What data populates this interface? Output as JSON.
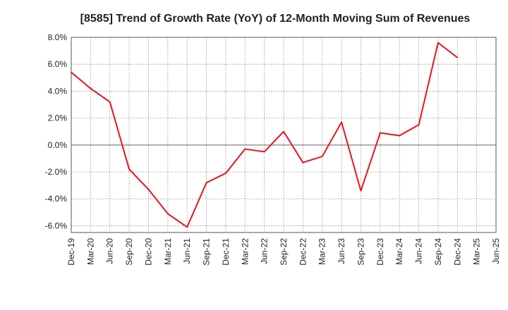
{
  "chart_data": {
    "type": "line",
    "title": "[8585]  Trend of Growth Rate (YoY) of 12-Month Moving Sum of Revenues",
    "xlabel": "",
    "ylabel": "",
    "x_ticks": [
      "Dec-19",
      "Mar-20",
      "Jun-20",
      "Sep-20",
      "Dec-20",
      "Mar-21",
      "Jun-21",
      "Sep-21",
      "Dec-21",
      "Mar-22",
      "Jun-22",
      "Sep-22",
      "Dec-22",
      "Mar-23",
      "Jun-23",
      "Sep-23",
      "Dec-23",
      "Mar-24",
      "Jun-24",
      "Sep-24",
      "Dec-24",
      "Mar-25",
      "Jun-25"
    ],
    "y_ticks": [
      8.0,
      6.0,
      4.0,
      2.0,
      0.0,
      -2.0,
      -4.0,
      -6.0
    ],
    "y_tick_labels": [
      "8.0%",
      "6.0%",
      "4.0%",
      "2.0%",
      "0.0%",
      "-2.0%",
      "-4.0%",
      "-6.0%"
    ],
    "ylim": [
      -6.5,
      8.0
    ],
    "grid": true,
    "series": [
      {
        "color": "#e8141c",
        "x": [
          "Dec-19",
          "Mar-20",
          "Jun-20",
          "Sep-20",
          "Dec-20",
          "Mar-21",
          "Jun-21",
          "Sep-21",
          "Dec-21",
          "Mar-22",
          "Jun-22",
          "Sep-22",
          "Dec-22",
          "Mar-23",
          "Jun-23",
          "Sep-23",
          "Dec-23",
          "Mar-24",
          "Jun-24",
          "Sep-24",
          "Dec-24"
        ],
        "values": [
          5.4,
          4.2,
          3.2,
          -1.8,
          -3.3,
          -5.1,
          -6.1,
          -2.8,
          -2.1,
          -0.3,
          -0.5,
          1.0,
          -1.3,
          -0.85,
          1.7,
          -3.4,
          0.9,
          0.7,
          1.5,
          7.6,
          6.5
        ]
      }
    ]
  }
}
